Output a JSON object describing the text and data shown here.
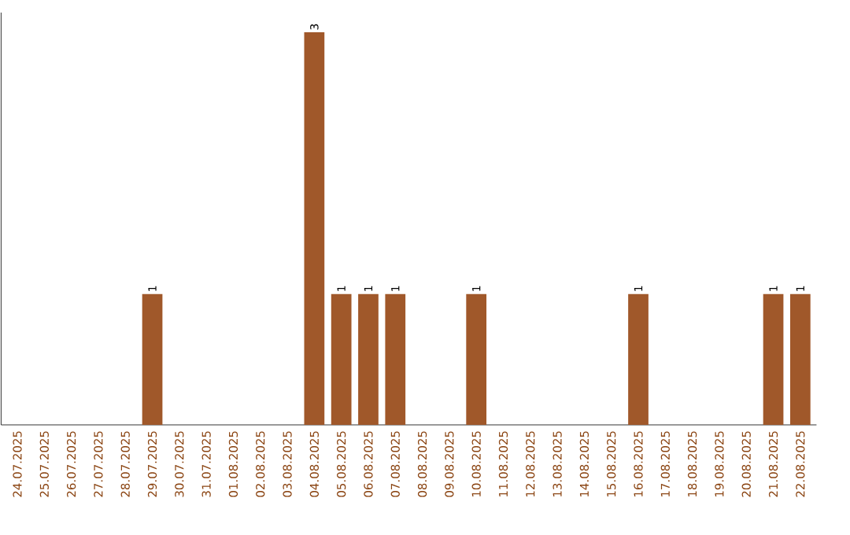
{
  "chart_data": {
    "type": "bar",
    "categories": [
      "24.07.2025",
      "25.07.2025",
      "26.07.2025",
      "27.07.2025",
      "28.07.2025",
      "29.07.2025",
      "30.07.2025",
      "31.07.2025",
      "01.08.2025",
      "02.08.2025",
      "03.08.2025",
      "04.08.2025",
      "05.08.2025",
      "06.08.2025",
      "07.08.2025",
      "08.08.2025",
      "09.08.2025",
      "10.08.2025",
      "11.08.2025",
      "12.08.2025",
      "13.08.2025",
      "14.08.2025",
      "15.08.2025",
      "16.08.2025",
      "17.08.2025",
      "18.08.2025",
      "19.08.2025",
      "20.08.2025",
      "21.08.2025",
      "22.08.2025"
    ],
    "values": [
      0,
      0,
      0,
      0,
      0,
      1,
      0,
      0,
      0,
      0,
      0,
      3,
      1,
      1,
      1,
      0,
      0,
      1,
      0,
      0,
      0,
      0,
      0,
      1,
      0,
      0,
      0,
      0,
      1,
      1
    ],
    "value_labels": [
      null,
      null,
      null,
      null,
      null,
      "1",
      null,
      null,
      null,
      null,
      null,
      "3",
      "1",
      "1",
      "1",
      null,
      null,
      "1",
      null,
      null,
      null,
      null,
      null,
      "1",
      null,
      null,
      null,
      null,
      "1",
      "1"
    ],
    "color": "#a0582a",
    "ylim": [
      0,
      3.15
    ],
    "tick_labels": "x"
  }
}
